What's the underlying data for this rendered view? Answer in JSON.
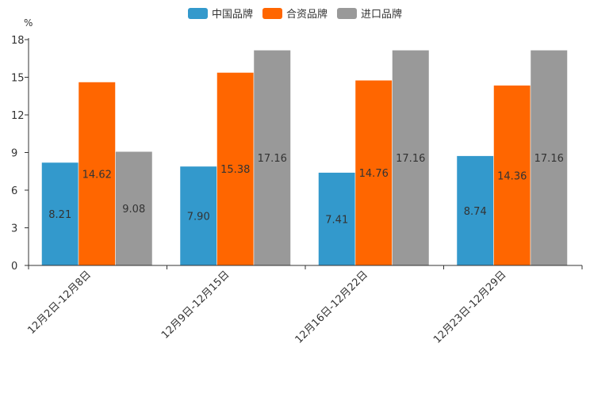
{
  "chart_data": {
    "type": "bar",
    "unit_label": "%",
    "categories": [
      "12月2日-12月8日",
      "12月9日-12月15日",
      "12月16日-12月22日",
      "12月23日-12月29日"
    ],
    "series": [
      {
        "name": "中国品牌",
        "color": "#3399cc",
        "values": [
          8.21,
          7.9,
          7.41,
          8.74
        ],
        "labels": [
          "8.21",
          "7.90",
          "7.41",
          "8.74"
        ]
      },
      {
        "name": "合资品牌",
        "color": "#ff6600",
        "values": [
          14.62,
          15.38,
          14.76,
          14.36
        ],
        "labels": [
          "14.62",
          "15.38",
          "14.76",
          "14.36"
        ]
      },
      {
        "name": "进口品牌",
        "color": "#999999",
        "values": [
          9.08,
          17.16,
          17.16,
          17.16
        ],
        "labels": [
          "9.08",
          "17.16",
          "17.16",
          "17.16"
        ]
      }
    ],
    "ylim": [
      0,
      18
    ],
    "yticks": [
      "0",
      "3",
      "6",
      "9",
      "12",
      "15",
      "18"
    ],
    "grid": false,
    "legend": "top-center"
  }
}
